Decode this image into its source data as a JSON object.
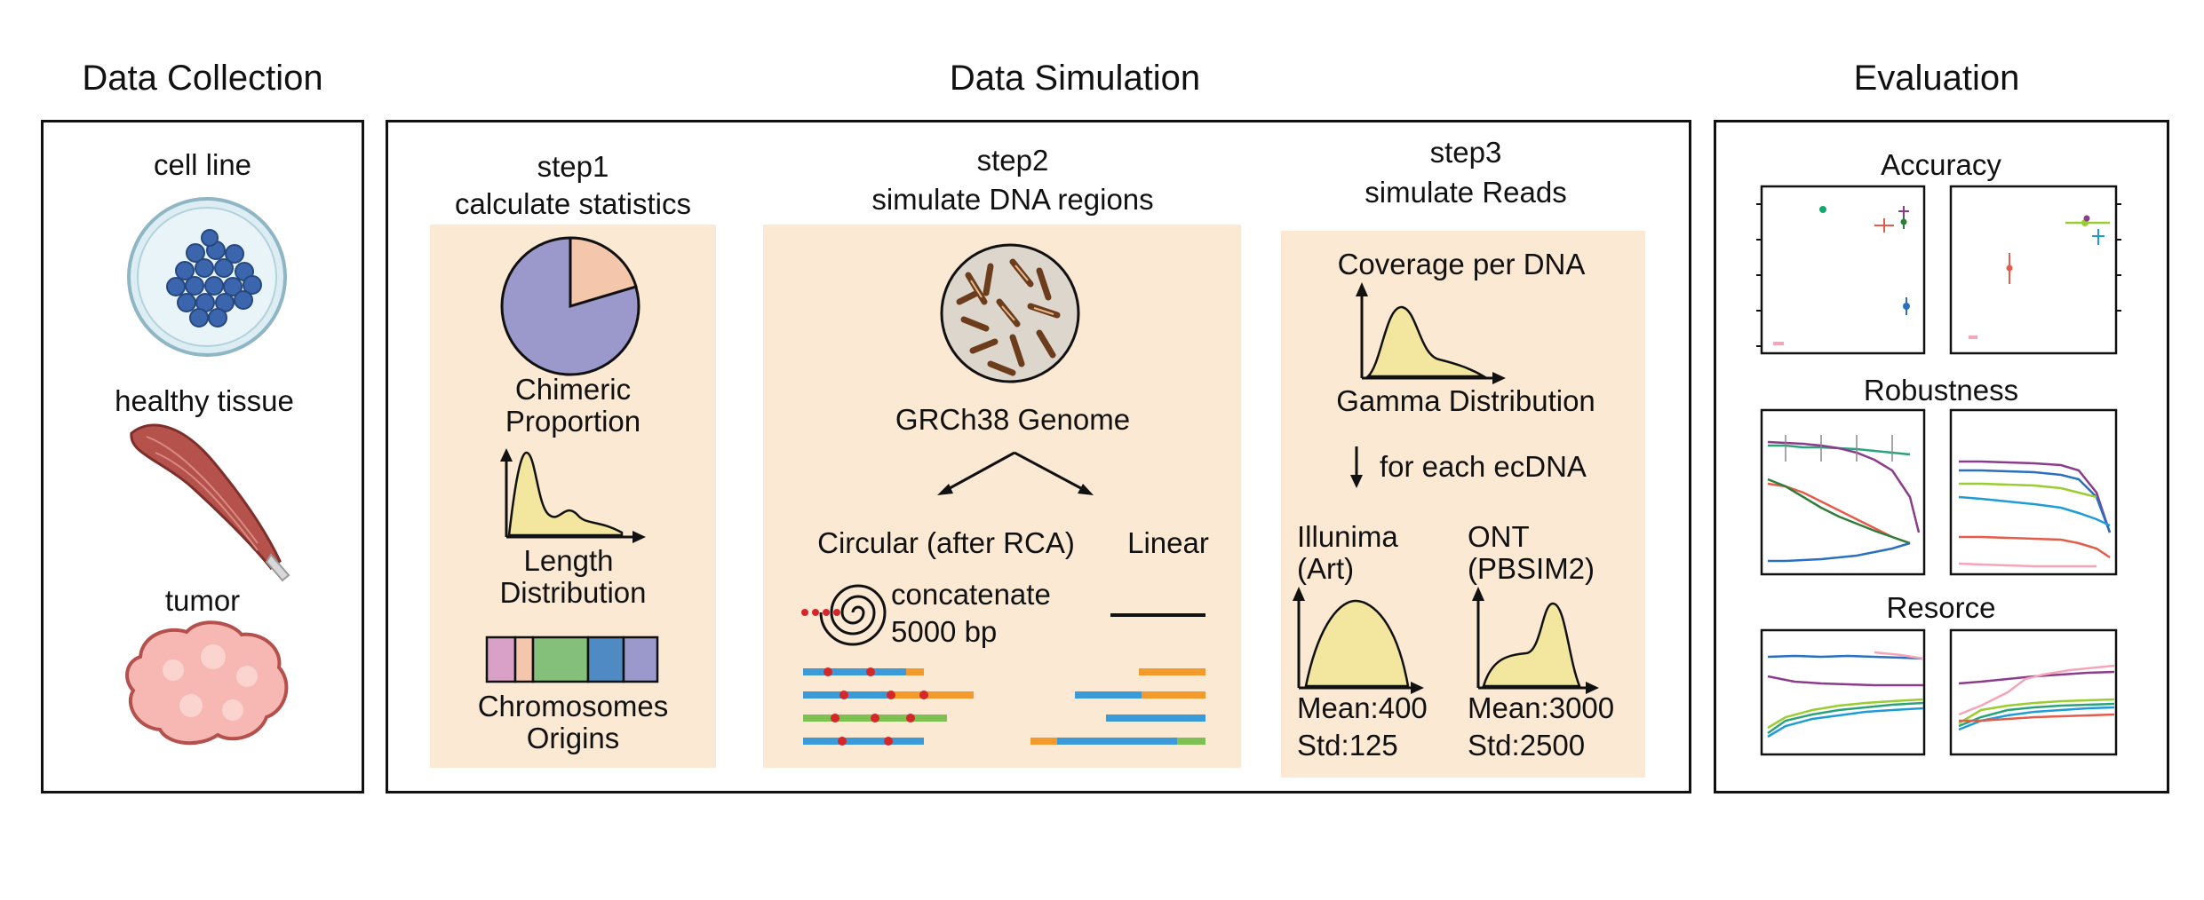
{
  "sections": {
    "collection": "Data Collection",
    "simulation": "Data Simulation",
    "evaluation": "Evaluation"
  },
  "collection": {
    "cell_line": "cell line",
    "healthy_tissue": "healthy tissue",
    "tumor": "tumor"
  },
  "step1": {
    "title": "step1",
    "subtitle": "calculate statistics",
    "chimeric": "Chimeric",
    "proportion": "Proportion",
    "length": "Length",
    "distribution": "Distribution",
    "chromosomes": "Chromosomes",
    "origins": "Origins"
  },
  "step2": {
    "title": "step2",
    "subtitle": "simulate DNA regions",
    "genome": "GRCh38 Genome",
    "circular": "Circular (after RCA)",
    "linear": "Linear",
    "concatenate": "concatenate",
    "bp": "5000 bp"
  },
  "step3": {
    "title": "step3",
    "subtitle": "simulate Reads",
    "coverage": "Coverage per DNA",
    "gamma": "Gamma Distribution",
    "for_each": "for each ecDNA",
    "illumina": "Illunima",
    "art": "(Art)",
    "ont": "ONT",
    "pbsim": "(PBSIM2)",
    "mean_ill": "Mean:400",
    "std_ill": "Std:125",
    "mean_ont": "Mean:3000",
    "std_ont": "Std:2500"
  },
  "evaluation": {
    "accuracy": "Accuracy",
    "robustness": "Robustness",
    "resource": "Resorce"
  },
  "colors": {
    "panel_bg": "#fbe9d4",
    "pie_main": "#9b98cc",
    "pie_slice": "#f4c6ab",
    "curve_fill": "#f3e7a0",
    "read_blue": "#3d9ad8",
    "read_orange": "#f39a2c",
    "read_green": "#7cc152",
    "tissue_red": "#b5524c"
  },
  "chromosome_colors": [
    "#d9a1c8",
    "#f4c6ab",
    "#84c07a",
    "#4f8ac4",
    "#9b98cc"
  ]
}
